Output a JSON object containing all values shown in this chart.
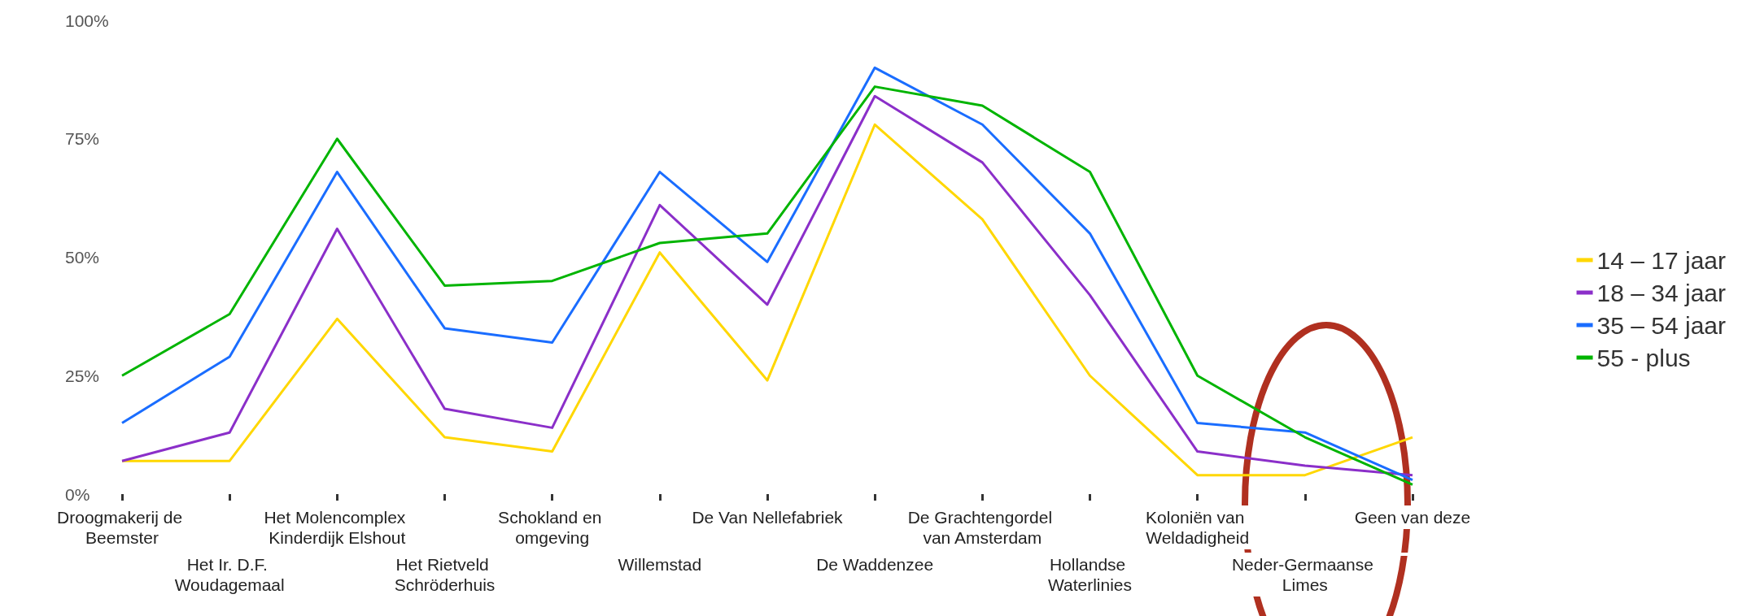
{
  "chart_data": {
    "type": "line",
    "categories": [
      "Droogmakerij de Beemster",
      "Het Ir. D.F. Woudagemaal",
      "Het Molencomplex Kinderdijk Elshout",
      "Het Rietveld Schröderhuis",
      "Schokland en omgeving",
      "Willemstad",
      "De Van Nellefabriek",
      "De Waddenzee",
      "De Grachtengordel van Amsterdam",
      "Hollandse Waterlinies",
      "Koloniën van Weldadigheid",
      "Neder-Germaanse Limes",
      "Geen van deze"
    ],
    "series": [
      {
        "name": "14 – 17 jaar",
        "color": "#ffd700",
        "values": [
          7,
          7,
          37,
          12,
          9,
          51,
          24,
          78,
          58,
          25,
          4,
          4,
          12
        ]
      },
      {
        "name": "18 – 34 jaar",
        "color": "#8b2fc9",
        "values": [
          7,
          13,
          56,
          18,
          14,
          61,
          40,
          84,
          70,
          42,
          9,
          6,
          4
        ]
      },
      {
        "name": "35 – 54 jaar",
        "color": "#1a6dff",
        "values": [
          15,
          29,
          68,
          35,
          32,
          68,
          49,
          90,
          78,
          55,
          15,
          13,
          3
        ]
      },
      {
        "name": "55 - plus",
        "color": "#00b400",
        "values": [
          25,
          38,
          75,
          44,
          45,
          53,
          55,
          86,
          82,
          68,
          25,
          12,
          2
        ]
      }
    ],
    "ylim": [
      0,
      100
    ],
    "yticks": [
      {
        "value": 0,
        "label": "0%"
      },
      {
        "value": 25,
        "label": "25%"
      },
      {
        "value": 50,
        "label": "50%"
      },
      {
        "value": 75,
        "label": "75%"
      },
      {
        "value": 100,
        "label": "100%"
      }
    ],
    "grid": false,
    "legend": "right",
    "marker": "none",
    "line_style": "solid"
  }
}
